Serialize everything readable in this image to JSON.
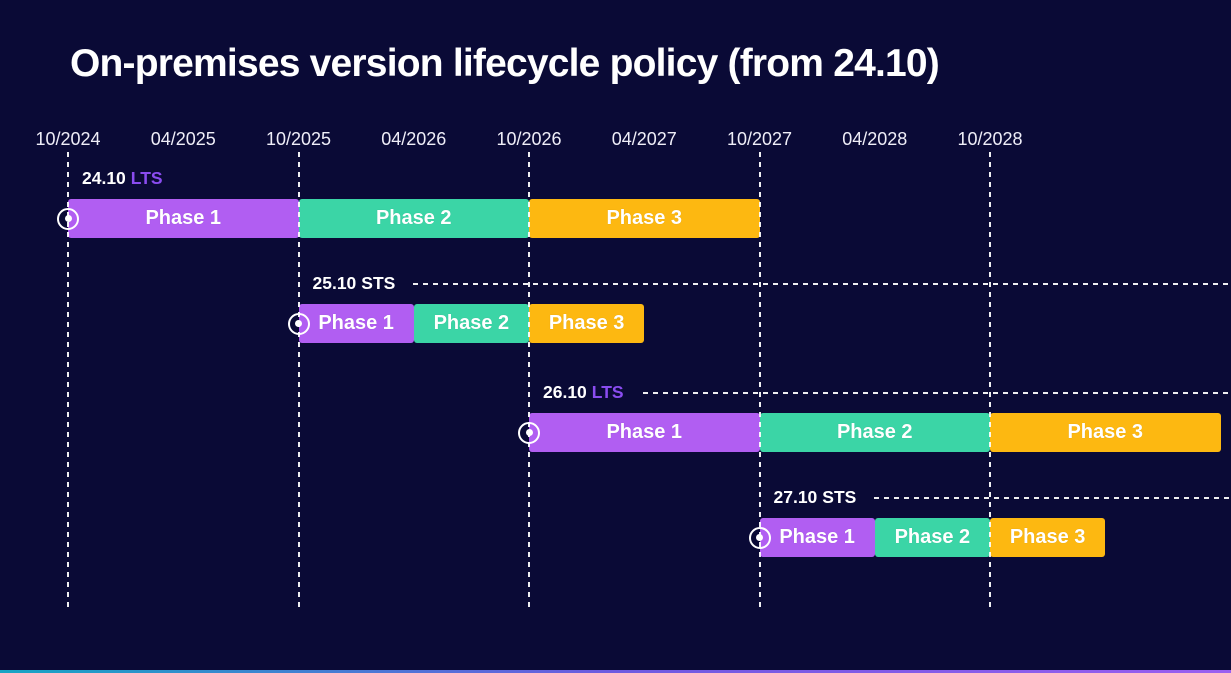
{
  "title": "On-premises version lifecycle policy (from 24.10)",
  "axis": {
    "ticks": [
      "10/2024",
      "04/2025",
      "10/2025",
      "04/2026",
      "10/2026",
      "04/2027",
      "10/2027",
      "04/2028",
      "10/2028"
    ],
    "gridline_tick_indexes": [
      0,
      2,
      4,
      6,
      8
    ]
  },
  "colors": {
    "background": "#0a0a36",
    "text": "#ffffff",
    "phase_colors": [
      "#b15ef2",
      "#3bd5a6",
      "#fdb811"
    ],
    "lts_badge": "#8a4cf0",
    "sts_badge": "#ffffff",
    "grid": "#ffffff",
    "footer_gradient": [
      "#17a5c4",
      "#6e5ae0",
      "#9a5ff0"
    ]
  },
  "rows": [
    {
      "version": "24.10",
      "type": "LTS",
      "start_tick": 0,
      "leader_line": false,
      "phases": [
        {
          "label": "Phase 1",
          "duration_ticks": 2
        },
        {
          "label": "Phase 2",
          "duration_ticks": 2
        },
        {
          "label": "Phase 3",
          "duration_ticks": 2
        }
      ]
    },
    {
      "version": "25.10",
      "type": "STS",
      "start_tick": 2,
      "leader_line": true,
      "phases": [
        {
          "label": "Phase 1",
          "duration_ticks": 1
        },
        {
          "label": "Phase 2",
          "duration_ticks": 1
        },
        {
          "label": "Phase 3",
          "duration_ticks": 1
        }
      ]
    },
    {
      "version": "26.10",
      "type": "LTS",
      "start_tick": 4,
      "leader_line": true,
      "phases": [
        {
          "label": "Phase 1",
          "duration_ticks": 2
        },
        {
          "label": "Phase 2",
          "duration_ticks": 2
        },
        {
          "label": "Phase 3",
          "duration_ticks": 2
        }
      ]
    },
    {
      "version": "27.10",
      "type": "STS",
      "start_tick": 6,
      "leader_line": true,
      "phases": [
        {
          "label": "Phase 1",
          "duration_ticks": 1
        },
        {
          "label": "Phase 2",
          "duration_ticks": 1
        },
        {
          "label": "Phase 3",
          "duration_ticks": 1
        }
      ]
    }
  ],
  "chart_data": {
    "type": "bar",
    "subtype": "gantt-timeline",
    "title": "On-premises version lifecycle policy (from 24.10)",
    "x_axis": {
      "tick_labels": [
        "10/2024",
        "04/2025",
        "10/2025",
        "04/2026",
        "10/2026",
        "04/2027",
        "10/2027",
        "04/2028",
        "10/2028"
      ],
      "tick_interval": "6 months",
      "gridlines_at": [
        "10/2024",
        "10/2025",
        "10/2026",
        "10/2027",
        "10/2028"
      ]
    },
    "legend_position": "none",
    "series": [
      {
        "name": "24.10 LTS",
        "phases": [
          {
            "label": "Phase 1",
            "start": "10/2024",
            "end": "10/2025",
            "color": "#b15ef2"
          },
          {
            "label": "Phase 2",
            "start": "10/2025",
            "end": "10/2026",
            "color": "#3bd5a6"
          },
          {
            "label": "Phase 3",
            "start": "10/2026",
            "end": "10/2027",
            "color": "#fdb811"
          }
        ]
      },
      {
        "name": "25.10 STS",
        "phases": [
          {
            "label": "Phase 1",
            "start": "10/2025",
            "end": "04/2026",
            "color": "#b15ef2"
          },
          {
            "label": "Phase 2",
            "start": "04/2026",
            "end": "10/2026",
            "color": "#3bd5a6"
          },
          {
            "label": "Phase 3",
            "start": "10/2026",
            "end": "04/2027",
            "color": "#fdb811"
          }
        ]
      },
      {
        "name": "26.10 LTS",
        "phases": [
          {
            "label": "Phase 1",
            "start": "10/2026",
            "end": "10/2027",
            "color": "#b15ef2"
          },
          {
            "label": "Phase 2",
            "start": "10/2027",
            "end": "10/2028",
            "color": "#3bd5a6"
          },
          {
            "label": "Phase 3",
            "start": "10/2028",
            "end": "10/2029",
            "color": "#fdb811"
          }
        ]
      },
      {
        "name": "27.10 STS",
        "phases": [
          {
            "label": "Phase 1",
            "start": "10/2027",
            "end": "04/2028",
            "color": "#b15ef2"
          },
          {
            "label": "Phase 2",
            "start": "04/2028",
            "end": "10/2028",
            "color": "#3bd5a6"
          },
          {
            "label": "Phase 3",
            "start": "10/2028",
            "end": "04/2029",
            "color": "#fdb811"
          }
        ]
      }
    ]
  }
}
